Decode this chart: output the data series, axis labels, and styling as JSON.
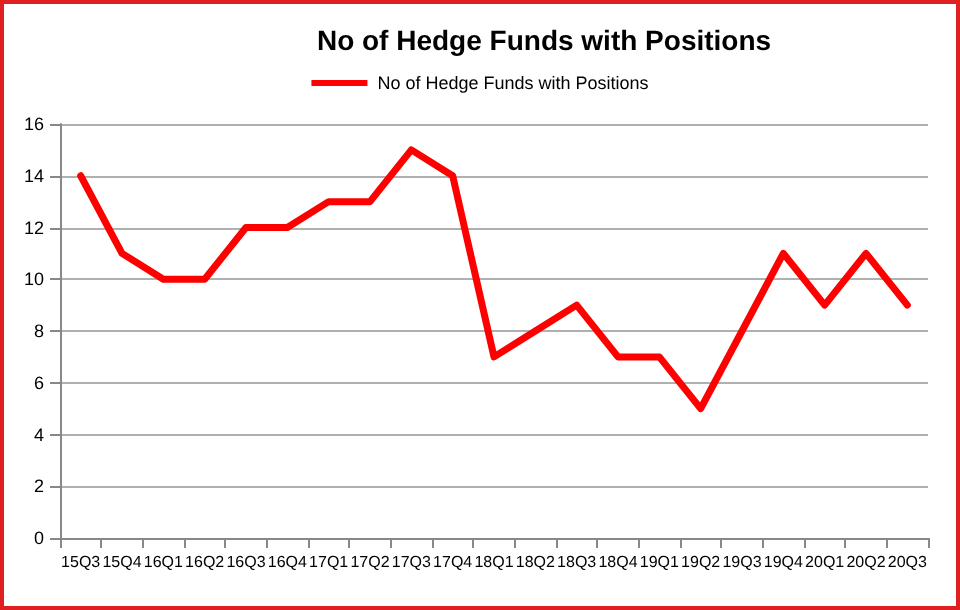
{
  "chart_data": {
    "type": "line",
    "title": "No of Hedge Funds with Positions",
    "categories": [
      "15Q3",
      "15Q4",
      "16Q1",
      "16Q2",
      "16Q3",
      "16Q4",
      "17Q1",
      "17Q2",
      "17Q3",
      "17Q4",
      "18Q1",
      "18Q2",
      "18Q3",
      "18Q4",
      "19Q1",
      "19Q2",
      "19Q3",
      "19Q4",
      "20Q1",
      "20Q2",
      "20Q3"
    ],
    "series": [
      {
        "name": "No of Hedge Funds with Positions",
        "color": "#ff0000",
        "values": [
          14,
          11,
          10,
          10,
          12,
          12,
          13,
          13,
          15,
          14,
          7,
          8,
          9,
          7,
          7,
          5,
          8,
          11,
          9,
          11,
          9
        ]
      }
    ],
    "ylim": [
      0,
      16
    ],
    "yticks": [
      0,
      2,
      4,
      6,
      8,
      10,
      12,
      14,
      16
    ],
    "grid": "y",
    "legend": "top",
    "marker": "none",
    "line_style": "solid"
  }
}
